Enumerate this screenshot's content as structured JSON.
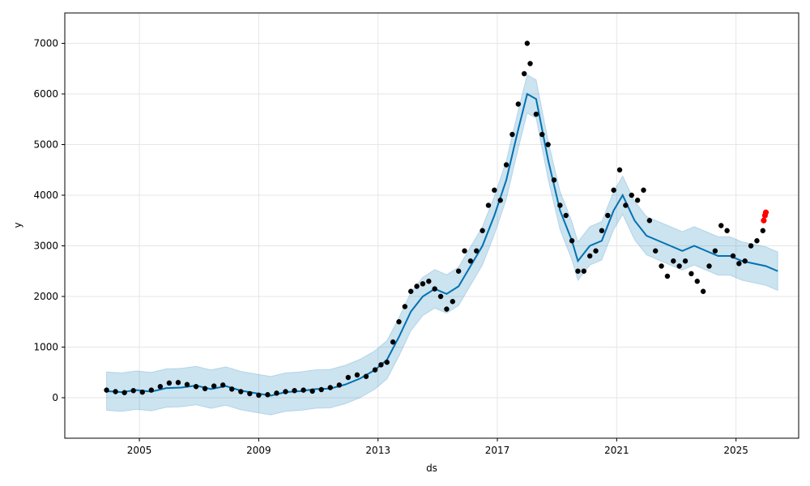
{
  "chart_data": {
    "type": "scatter",
    "title": "",
    "xlabel": "ds",
    "ylabel": "y",
    "xlim": [
      2002.5,
      2027.1
    ],
    "ylim": [
      -800,
      7600
    ],
    "x_ticks": [
      2005,
      2009,
      2013,
      2017,
      2021,
      2025
    ],
    "x_tick_labels": [
      "2005",
      "2009",
      "2013",
      "2017",
      "2021",
      "2025"
    ],
    "y_ticks": [
      0,
      1000,
      2000,
      3000,
      4000,
      5000,
      6000,
      7000
    ],
    "y_tick_labels": [
      "0",
      "1000",
      "2000",
      "3000",
      "4000",
      "5000",
      "6000",
      "7000"
    ],
    "grid": true,
    "colors": {
      "observed": "#000000",
      "forecast": "#0072B2",
      "uncertainty": "#0072B2",
      "highlight": "#ff0000"
    },
    "observed": {
      "x": [
        2003.9,
        2004.2,
        2004.5,
        2004.8,
        2005.1,
        2005.4,
        2005.7,
        2006.0,
        2006.3,
        2006.6,
        2006.9,
        2007.2,
        2007.5,
        2007.8,
        2008.1,
        2008.4,
        2008.7,
        2009.0,
        2009.3,
        2009.6,
        2009.9,
        2010.2,
        2010.5,
        2010.8,
        2011.1,
        2011.4,
        2011.7,
        2012.0,
        2012.3,
        2012.6,
        2012.9,
        2013.1,
        2013.3,
        2013.5,
        2013.7,
        2013.9,
        2014.1,
        2014.3,
        2014.5,
        2014.7,
        2014.9,
        2015.1,
        2015.3,
        2015.5,
        2015.7,
        2015.9,
        2016.1,
        2016.3,
        2016.5,
        2016.7,
        2016.9,
        2017.1,
        2017.3,
        2017.5,
        2017.7,
        2017.9,
        2018.0,
        2018.1,
        2018.3,
        2018.5,
        2018.7,
        2018.9,
        2019.1,
        2019.3,
        2019.5,
        2019.7,
        2019.9,
        2020.1,
        2020.3,
        2020.5,
        2020.7,
        2020.9,
        2021.1,
        2021.3,
        2021.5,
        2021.7,
        2021.9,
        2022.1,
        2022.3,
        2022.5,
        2022.7,
        2022.9,
        2023.1,
        2023.3,
        2023.5,
        2023.7,
        2023.9,
        2024.1,
        2024.3,
        2024.5,
        2024.7,
        2024.9,
        2025.1,
        2025.3,
        2025.5,
        2025.7,
        2025.9
      ],
      "y": [
        150,
        120,
        100,
        140,
        110,
        150,
        220,
        290,
        300,
        260,
        220,
        180,
        230,
        250,
        170,
        120,
        80,
        50,
        60,
        90,
        120,
        140,
        150,
        130,
        160,
        200,
        250,
        400,
        450,
        420,
        550,
        650,
        700,
        1100,
        1500,
        1800,
        2100,
        2200,
        2250,
        2300,
        2150,
        2000,
        1750,
        1900,
        2500,
        2900,
        2700,
        2900,
        3300,
        3800,
        4100,
        3900,
        4600,
        5200,
        5800,
        6400,
        7000,
        6600,
        5600,
        5200,
        5000,
        4300,
        3800,
        3600,
        3100,
        2500,
        2500,
        2800,
        2900,
        3300,
        3600,
        4100,
        4500,
        3800,
        4000,
        3900,
        4100,
        3500,
        2900,
        2600,
        2400,
        2700,
        2600,
        2700,
        2450,
        2300,
        2100,
        2600,
        2900,
        3400,
        3300,
        2800,
        2650,
        2700,
        3000,
        3100,
        3300
      ]
    },
    "highlight": {
      "x": [
        2025.93,
        2025.97,
        2026.0
      ],
      "y": [
        3500,
        3600,
        3660
      ]
    },
    "forecast": {
      "x": [
        2003.9,
        2004.4,
        2004.9,
        2005.4,
        2005.9,
        2006.4,
        2006.9,
        2007.4,
        2007.9,
        2008.4,
        2008.9,
        2009.4,
        2009.9,
        2010.4,
        2010.9,
        2011.4,
        2011.9,
        2012.4,
        2012.9,
        2013.3,
        2013.7,
        2014.1,
        2014.5,
        2014.9,
        2015.3,
        2015.7,
        2016.1,
        2016.5,
        2016.9,
        2017.3,
        2017.7,
        2018.0,
        2018.3,
        2018.7,
        2019.1,
        2019.5,
        2019.7,
        2020.1,
        2020.5,
        2020.9,
        2021.2,
        2021.6,
        2022.0,
        2022.4,
        2022.8,
        2023.2,
        2023.6,
        2024.0,
        2024.4,
        2024.8,
        2025.2,
        2025.6,
        2026.0,
        2026.4
      ],
      "y": [
        130,
        110,
        150,
        120,
        190,
        200,
        240,
        170,
        230,
        140,
        90,
        40,
        110,
        130,
        170,
        180,
        260,
        380,
        550,
        750,
        1200,
        1700,
        2000,
        2150,
        2050,
        2200,
        2600,
        3000,
        3600,
        4300,
        5300,
        6000,
        5900,
        4700,
        3700,
        3100,
        2700,
        3000,
        3100,
        3700,
        4000,
        3500,
        3200,
        3100,
        3000,
        2900,
        3000,
        2900,
        2800,
        2800,
        2700,
        2650,
        2600,
        2500
      ]
    },
    "uncertainty_halfwidth": 380
  }
}
